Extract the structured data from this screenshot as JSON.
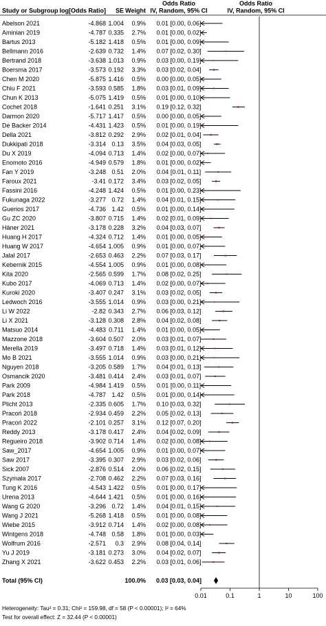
{
  "headers": {
    "study": "Study or Subgroup",
    "log_or": "log[Odds Ratio]",
    "se": "SE",
    "weight": "Weight",
    "or_top_1": "Odds Ratio",
    "or_sub_1": "IV, Random, 95% CI",
    "or_top_2": "Odds Ratio",
    "or_sub_2": "IV, Random, 95% CI"
  },
  "chart_data": {
    "type": "forest",
    "x_scale": "log",
    "xlim": [
      0.01,
      100
    ],
    "x_ticks": [
      {
        "value": 0.01,
        "label": "0.01"
      },
      {
        "value": 0.1,
        "label": "0.1"
      },
      {
        "value": 1,
        "label": "1"
      },
      {
        "value": 10,
        "label": "10"
      },
      {
        "value": 100,
        "label": "100"
      }
    ],
    "rows": [
      {
        "study": "Abelson 2021",
        "log_or": "-4.868",
        "se": "1.004",
        "weight": "0.9%",
        "ci_text": "0.01 [0.00, 0.06]",
        "or": 0.0077,
        "lo": 0.0011,
        "hi": 0.055
      },
      {
        "study": "Aminian 2019",
        "log_or": "-4.787",
        "se": "0.335",
        "weight": "2.7%",
        "ci_text": "0.01 [0.00, 0.02]",
        "or": 0.0083,
        "lo": 0.0043,
        "hi": 0.016
      },
      {
        "study": "Bartus 2013",
        "log_or": "-5.182",
        "se": "1.418",
        "weight": "0.5%",
        "ci_text": "0.01 [0.00, 0.09]",
        "or": 0.0056,
        "lo": 0.00035,
        "hi": 0.09
      },
      {
        "study": "Bellmann 2016",
        "log_or": "-2.639",
        "se": "0.732",
        "weight": "1.4%",
        "ci_text": "0.07 [0.02, 0.30]",
        "or": 0.071,
        "lo": 0.017,
        "hi": 0.3
      },
      {
        "study": "Bertrand 2018",
        "log_or": "-3.638",
        "se": "1.013",
        "weight": "0.9%",
        "ci_text": "0.03 [0.00, 0.19]",
        "or": 0.026,
        "lo": 0.0036,
        "hi": 0.19
      },
      {
        "study": "Boersma 2017",
        "log_or": "-3.573",
        "se": "0.192",
        "weight": "3.3%",
        "ci_text": "0.03 [0.02, 0.04]",
        "or": 0.028,
        "lo": 0.019,
        "hi": 0.04
      },
      {
        "study": "Chen M 2020",
        "log_or": "-5.875",
        "se": "1.416",
        "weight": "0.5%",
        "ci_text": "0.00 [0.00, 0.05]",
        "or": 0.0028,
        "lo": 0.00017,
        "hi": 0.05
      },
      {
        "study": "Chiu F 2021",
        "log_or": "-3.593",
        "se": "0.585",
        "weight": "1.8%",
        "ci_text": "0.03 [0.01, 0.09]",
        "or": 0.028,
        "lo": 0.0087,
        "hi": 0.09
      },
      {
        "study": "Chun K 2013",
        "log_or": "-5.075",
        "se": "1.419",
        "weight": "0.5%",
        "ci_text": "0.01 [0.00, 0.10]",
        "or": 0.0063,
        "lo": 0.00039,
        "hi": 0.1
      },
      {
        "study": "Cochet 2018",
        "log_or": "-1.641",
        "se": "0.251",
        "weight": "3.1%",
        "ci_text": "0.19 [0.12, 0.32]",
        "or": 0.19,
        "lo": 0.12,
        "hi": 0.32
      },
      {
        "study": "Darmon 2020",
        "log_or": "-5.717",
        "se": "1.417",
        "weight": "0.5%",
        "ci_text": "0.00 [0.00, 0.05]",
        "or": 0.0033,
        "lo": 0.0002,
        "hi": 0.05
      },
      {
        "study": "De Backer 2014",
        "log_or": "-4.431",
        "se": "1.423",
        "weight": "0.5%",
        "ci_text": "0.01 [0.00, 0.19]",
        "or": 0.012,
        "lo": 0.00073,
        "hi": 0.19
      },
      {
        "study": "Della 2021",
        "log_or": "-3.812",
        "se": "0.292",
        "weight": "2.9%",
        "ci_text": "0.02 [0.01, 0.04]",
        "or": 0.022,
        "lo": 0.012,
        "hi": 0.04
      },
      {
        "study": "Dukkipati 2018",
        "log_or": "-3.314",
        "se": "0.13",
        "weight": "3.5%",
        "ci_text": "0.04 [0.03, 0.05]",
        "or": 0.036,
        "lo": 0.028,
        "hi": 0.047
      },
      {
        "study": "Du X 2019",
        "log_or": "-4.094",
        "se": "0.713",
        "weight": "1.4%",
        "ci_text": "0.02 [0.00, 0.07]",
        "or": 0.017,
        "lo": 0.0041,
        "hi": 0.067
      },
      {
        "study": "Enomoto 2016",
        "log_or": "-4.949",
        "se": "0.579",
        "weight": "1.8%",
        "ci_text": "0.01 [0.00, 0.02]",
        "or": 0.0071,
        "lo": 0.0023,
        "hi": 0.022
      },
      {
        "study": "Fan Y 2019",
        "log_or": "-3.248",
        "se": "0.51",
        "weight": "2.0%",
        "ci_text": "0.04 [0.01, 0.11]",
        "or": 0.039,
        "lo": 0.014,
        "hi": 0.11
      },
      {
        "study": "Faroux 2021",
        "log_or": "-3.41",
        "se": "0.172",
        "weight": "3.4%",
        "ci_text": "0.03 [0.02, 0.05]",
        "or": 0.033,
        "lo": 0.024,
        "hi": 0.046
      },
      {
        "study": "Fassini 2016",
        "log_or": "-4.248",
        "se": "1.424",
        "weight": "0.5%",
        "ci_text": "0.01 [0.00, 0.23]",
        "or": 0.014,
        "lo": 0.00088,
        "hi": 0.23
      },
      {
        "study": "Fukunaga 2022",
        "log_or": "-3.277",
        "se": "0.72",
        "weight": "1.4%",
        "ci_text": "0.04 [0.01, 0.15]",
        "or": 0.038,
        "lo": 0.0092,
        "hi": 0.15
      },
      {
        "study": "Guerios 2017",
        "log_or": "-4.736",
        "se": "1.42",
        "weight": "0.5%",
        "ci_text": "0.01 [0.00, 0.14]",
        "or": 0.0088,
        "lo": 0.00054,
        "hi": 0.14
      },
      {
        "study": "Gu ZC 2020",
        "log_or": "-3.807",
        "se": "0.715",
        "weight": "1.4%",
        "ci_text": "0.02 [0.01, 0.09]",
        "or": 0.022,
        "lo": 0.0055,
        "hi": 0.09
      },
      {
        "study": "Häner 2021",
        "log_or": "-3.178",
        "se": "0.228",
        "weight": "3.2%",
        "ci_text": "0.04 [0.03, 0.07]",
        "or": 0.042,
        "lo": 0.027,
        "hi": 0.065
      },
      {
        "study": "Huang H 2017",
        "log_or": "-4.324",
        "se": "0.712",
        "weight": "1.4%",
        "ci_text": "0.01 [0.00, 0.05]",
        "or": 0.013,
        "lo": 0.0033,
        "hi": 0.053
      },
      {
        "study": "Huang W 2017",
        "log_or": "-4.654",
        "se": "1.005",
        "weight": "0.9%",
        "ci_text": "0.01 [0.00, 0.07]",
        "or": 0.0095,
        "lo": 0.0013,
        "hi": 0.068
      },
      {
        "study": "Jalal 2017",
        "log_or": "-2.653",
        "se": "0.463",
        "weight": "2.2%",
        "ci_text": "0.07 [0.03, 0.17]",
        "or": 0.07,
        "lo": 0.028,
        "hi": 0.17
      },
      {
        "study": "Kebernik 2015",
        "log_or": "-4.554",
        "se": "1.005",
        "weight": "0.9%",
        "ci_text": "0.01 [0.00, 0.08]",
        "or": 0.011,
        "lo": 0.0015,
        "hi": 0.075
      },
      {
        "study": "Kita 2020",
        "log_or": "-2.565",
        "se": "0.599",
        "weight": "1.7%",
        "ci_text": "0.08 [0.02, 0.25]",
        "or": 0.077,
        "lo": 0.024,
        "hi": 0.25
      },
      {
        "study": "Kubo 2017",
        "log_or": "-4.069",
        "se": "0.713",
        "weight": "1.4%",
        "ci_text": "0.02 [0.00, 0.07]",
        "or": 0.017,
        "lo": 0.0042,
        "hi": 0.069
      },
      {
        "study": "Kuroki 2020",
        "log_or": "-3.407",
        "se": "0.247",
        "weight": "3.1%",
        "ci_text": "0.03 [0.02, 0.05]",
        "or": 0.033,
        "lo": 0.02,
        "hi": 0.054
      },
      {
        "study": "Ledwoch 2016",
        "log_or": "-3.555",
        "index_hint": "",
        "se": "1.014",
        "weight": "0.9%",
        "ci_text": "0.03 [0.00, 0.21]",
        "or": 0.029,
        "lo": 0.0039,
        "hi": 0.21
      },
      {
        "study": "Li W 2022",
        "log_or": "-2.82",
        "se": "0.343",
        "weight": "2.7%",
        "ci_text": "0.06 [0.03, 0.12]",
        "or": 0.06,
        "lo": 0.031,
        "hi": 0.12
      },
      {
        "study": "Li X 2021",
        "log_or": "-3.128",
        "se": "0.308",
        "weight": "2.8%",
        "ci_text": "0.04 [0.02, 0.08]",
        "or": 0.044,
        "lo": 0.024,
        "hi": 0.08
      },
      {
        "study": "Matsuo 2014",
        "log_or": "-4.483",
        "se": "0.711",
        "weight": "1.4%",
        "ci_text": "0.01 [0.00, 0.05]",
        "or": 0.011,
        "lo": 0.0028,
        "hi": 0.045
      },
      {
        "study": "Mazzone 2018",
        "log_or": "-3.604",
        "se": "0.507",
        "weight": "2.0%",
        "ci_text": "0.03 [0.01, 0.07]",
        "or": 0.027,
        "lo": 0.01,
        "hi": 0.074
      },
      {
        "study": "Merella 2019",
        "log_or": "-3.497",
        "se": "0.718",
        "weight": "1.4%",
        "ci_text": "0.03 [0.01, 0.12]",
        "or": 0.03,
        "lo": 0.0074,
        "hi": 0.124
      },
      {
        "study": "Mo B 2021",
        "log_or": "-3.555",
        "se": "1.014",
        "weight": "0.9%",
        "ci_text": "0.03 [0.00, 0.21]",
        "or": 0.029,
        "lo": 0.0039,
        "hi": 0.21
      },
      {
        "study": "Nguyen 2018",
        "log_or": "-3.205",
        "se": "0.589",
        "weight": "1.7%",
        "ci_text": "0.04 [0.01, 0.13]",
        "or": 0.041,
        "lo": 0.013,
        "hi": 0.13
      },
      {
        "study": "Osmancik 2020",
        "log_or": "-3.481",
        "se": "0.414",
        "weight": "2.4%",
        "ci_text": "0.03 [0.01, 0.07]",
        "or": 0.031,
        "lo": 0.014,
        "hi": 0.069
      },
      {
        "study": "Park 2009",
        "log_or": "-4.984",
        "se": "1.419",
        "weight": "0.5%",
        "ci_text": "0.01 [0.00, 0.11]",
        "or": 0.0068,
        "lo": 0.00042,
        "hi": 0.11
      },
      {
        "study": "Park 2018",
        "log_or": "-4.787",
        "se": "1.42",
        "weight": "0.5%",
        "ci_text": "0.01 [0.00, 0.14]",
        "or": 0.0083,
        "lo": 0.00051,
        "hi": 0.14
      },
      {
        "study": "Plicht 2013",
        "log_or": "-2.335",
        "se": "0.605",
        "weight": "1.7%",
        "ci_text": "0.10 [0.03, 0.32]",
        "or": 0.097,
        "lo": 0.03,
        "hi": 0.32
      },
      {
        "study": "Pracoń 2018",
        "log_or": "-2.934",
        "se": "0.459",
        "weight": "2.2%",
        "ci_text": "0.05 [0.02, 0.13]",
        "or": 0.053,
        "lo": 0.022,
        "hi": 0.13
      },
      {
        "study": "Pracoń 2022",
        "log_or": "-2.101",
        "se": "0.257",
        "weight": "3.1%",
        "ci_text": "0.12 [0.07, 0.20]",
        "or": 0.12,
        "lo": 0.074,
        "hi": 0.2
      },
      {
        "study": "Reddy 2013",
        "log_or": "-3.178",
        "se": "0.417",
        "weight": "2.4%",
        "ci_text": "0.04 [0.02, 0.09]",
        "or": 0.042,
        "lo": 0.018,
        "hi": 0.094
      },
      {
        "study": "Regueiro 2018",
        "log_or": "-3.902",
        "se": "0.714",
        "weight": "1.4%",
        "ci_text": "0.02 [0.00, 0.08]",
        "or": 0.02,
        "lo": 0.005,
        "hi": 0.082
      },
      {
        "study": "Saw_2017",
        "log_or": "-4.654",
        "se": "1.005",
        "weight": "0.9%",
        "ci_text": "0.01 [0.00, 0.07]",
        "or": 0.0095,
        "lo": 0.0013,
        "hi": 0.068
      },
      {
        "study": "Saw 2017",
        "log_or": "-3.395",
        "se": "0.307",
        "weight": "2.9%",
        "ci_text": "0.03 [0.02, 0.06]",
        "or": 0.034,
        "lo": 0.018,
        "hi": 0.061
      },
      {
        "study": "Sick 2007",
        "log_or": "-2.876",
        "se": "0.514",
        "weight": "2.0%",
        "ci_text": "0.06 [0.02, 0.15]",
        "or": 0.056,
        "lo": 0.021,
        "hi": 0.15
      },
      {
        "study": "Szymala 2017",
        "log_or": "-2.708",
        "se": "0.462",
        "weight": "2.2%",
        "ci_text": "0.07 [0.03, 0.16]",
        "or": 0.067,
        "lo": 0.027,
        "hi": 0.16
      },
      {
        "study": "Tung K 2016",
        "log_or": "-4.543",
        "se": "1.422",
        "weight": "0.5%",
        "ci_text": "0.01 [0.00, 0.17]",
        "or": 0.011,
        "lo": 0.00065,
        "hi": 0.17
      },
      {
        "study": "Urena 2013",
        "log_or": "-4.644",
        "se": "1.421",
        "weight": "0.5%",
        "ci_text": "0.01 [0.00, 0.16]",
        "or": 0.0096,
        "lo": 0.00059,
        "hi": 0.16
      },
      {
        "study": "Wang G 2020",
        "log_or": "-3.296",
        "se": "0.72",
        "weight": "1.4%",
        "ci_text": "0.04 [0.01, 0.15]",
        "or": 0.037,
        "lo": 0.009,
        "hi": 0.15
      },
      {
        "study": "Wang J 2021",
        "log_or": "-5.268",
        "se": "1.418",
        "weight": "0.5%",
        "ci_text": "0.01 [0.00, 0.08]",
        "or": 0.0052,
        "lo": 0.00032,
        "hi": 0.08
      },
      {
        "study": "Wiebe 2015",
        "log_or": "-3.912",
        "se": "0.714",
        "weight": "1.4%",
        "ci_text": "0.02 [0.00, 0.08]",
        "or": 0.02,
        "lo": 0.0049,
        "hi": 0.081
      },
      {
        "study": "Wintgens 2018",
        "log_or": "-4.748",
        "se": "0.58",
        "weight": "1.8%",
        "ci_text": "0.01 [0.00, 0.03]",
        "or": 0.0087,
        "lo": 0.0028,
        "hi": 0.027
      },
      {
        "study": "Wolfrum 2016",
        "log_or": "-2.571",
        "se": "0.3",
        "weight": "2.9%",
        "ci_text": "0.08 [0.04, 0.14]",
        "or": 0.076,
        "lo": 0.042,
        "hi": 0.14
      },
      {
        "study": "Yu J 2019",
        "log_or": "-3.181",
        "se": "0.273",
        "weight": "3.0%",
        "ci_text": "0.04 [0.02, 0.07]",
        "or": 0.042,
        "lo": 0.024,
        "hi": 0.071
      },
      {
        "study": "Zhang X 2021",
        "log_or": "-3.622",
        "se": "0.453",
        "weight": "2.2%",
        "ci_text": "0.03 [0.01, 0.06]",
        "or": 0.027,
        "lo": 0.011,
        "hi": 0.065
      }
    ],
    "total": {
      "label": "Total (95% CI)",
      "weight": "100.0%",
      "ci_text": "0.03 [0.03, 0.04]",
      "or": 0.033,
      "lo": 0.028,
      "hi": 0.039
    },
    "heterogeneity_text": "Heterogeneity: Tau² = 0.31; Chi² = 159.98, df = 58 (P < 0.00001); I² = 64%",
    "overall_effect_text": "Test for overall effect: Z = 32.44 (P < 0.00001)",
    "colors": {
      "point": "#c00000",
      "total_diamond": "#000000",
      "lines": "#000000"
    }
  }
}
